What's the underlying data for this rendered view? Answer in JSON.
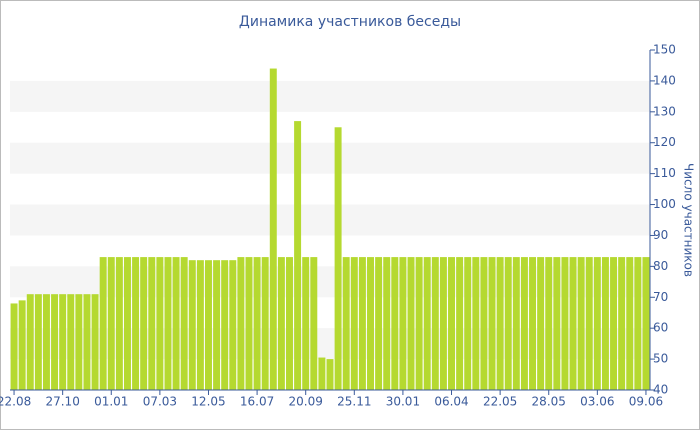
{
  "chart_data": {
    "type": "bar",
    "title": "Динамика участников беседы",
    "y_label": "Число участников",
    "categories": [
      "22.08",
      null,
      null,
      null,
      null,
      null,
      "27.10",
      null,
      null,
      null,
      null,
      null,
      "01.01",
      null,
      null,
      null,
      null,
      null,
      "07.03",
      null,
      null,
      null,
      null,
      null,
      "12.05",
      null,
      null,
      null,
      null,
      null,
      "16.07",
      null,
      null,
      null,
      null,
      null,
      "20.09",
      null,
      null,
      null,
      null,
      null,
      "25.11",
      null,
      null,
      null,
      null,
      null,
      "30.01",
      null,
      null,
      null,
      null,
      null,
      "06.04",
      null,
      null,
      null,
      null,
      null,
      "22.05",
      null,
      null,
      null,
      null,
      null,
      "28.05",
      null,
      null,
      null,
      null,
      null,
      "03.06",
      null,
      null,
      null,
      null,
      null,
      "09.06"
    ],
    "values": [
      68,
      69,
      71,
      71,
      71,
      71,
      71,
      71,
      71,
      71,
      71,
      83,
      83,
      83,
      83,
      83,
      83,
      83,
      83,
      83,
      83,
      83,
      82,
      82,
      82,
      82,
      82,
      82,
      83,
      83,
      83,
      83,
      144,
      83,
      83,
      127,
      83,
      83,
      50.5,
      50,
      125,
      83,
      83,
      83,
      83,
      83,
      83,
      83,
      83,
      83,
      83,
      83,
      83,
      83,
      83,
      83,
      83,
      83,
      83,
      83,
      83,
      83,
      83,
      83,
      83,
      83,
      83,
      83,
      83,
      83,
      83,
      83,
      83,
      83,
      83,
      83,
      83,
      83,
      83
    ],
    "color": "#b5d930",
    "ylim": [
      40,
      150
    ],
    "yticks": [
      40,
      50,
      60,
      70,
      80,
      90,
      100,
      110,
      120,
      130,
      140,
      150
    ],
    "grid": true,
    "y_axis_side": "right"
  }
}
